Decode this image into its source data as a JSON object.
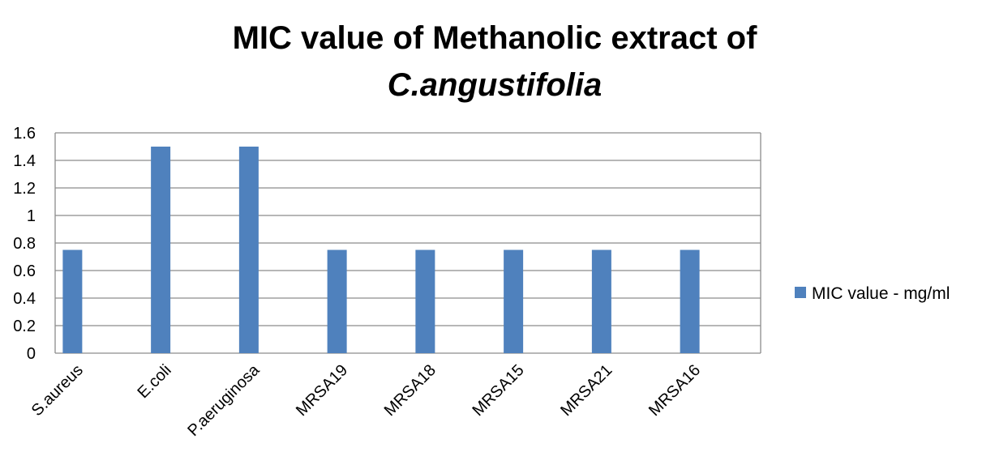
{
  "chart_data": {
    "type": "bar",
    "title_line1": "MIC value of Methanolic extract of",
    "title_line2": "C.angustifolia",
    "xlabel": "",
    "ylabel": "",
    "categories": [
      "S.aureus",
      "E.coli",
      "P.aeruginosa",
      "MRSA19",
      "MRSA18",
      "MRSA15",
      "MRSA21",
      "MRSA16"
    ],
    "series": [
      {
        "name": "MIC value - mg/ml",
        "values": [
          0.75,
          1.5,
          1.5,
          0.75,
          0.75,
          0.75,
          0.75,
          0.75
        ],
        "color": "#4f81bd"
      }
    ],
    "ylim": [
      0,
      1.6
    ],
    "yticks": [
      "0",
      "0.2",
      "0.4",
      "0.6",
      "0.8",
      "1",
      "1.2",
      "1.4",
      "1.6"
    ],
    "grid": true,
    "legend_position": "right",
    "gridline_color": "#8c8c8c"
  }
}
